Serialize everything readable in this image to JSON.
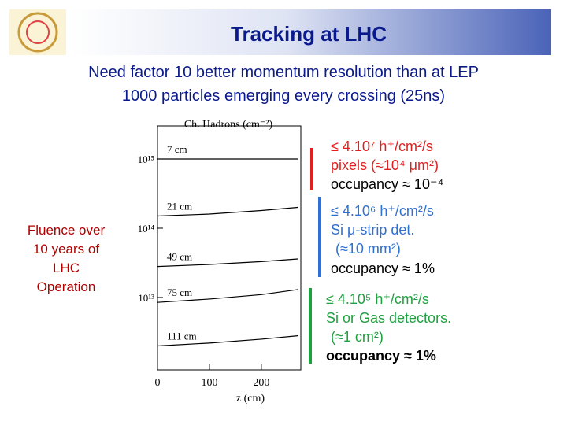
{
  "header": {
    "title": "Tracking at LHC"
  },
  "intro": [
    "Need factor 10 better momentum resolution than at LEP",
    "1000 particles emerging every crossing (25ns)"
  ],
  "side_note": [
    "Fluence over",
    "10 years of",
    "LHC",
    "Operation"
  ],
  "notes": [
    {
      "lines": [
        "≤ 4.10⁷ h⁺/cm²/s",
        "pixels (≈10⁴ μm²)",
        "occupancy ≈ 10⁻⁴"
      ]
    },
    {
      "lines": [
        "≤ 4.10⁶ h⁺/cm²/s",
        "Si μ-strip det.",
        "(≈10 mm²)",
        "occupancy ≈ 1%"
      ]
    },
    {
      "lines": [
        "≤ 4.10⁵ h⁺/cm²/s",
        "Si or Gas detectors.",
        "(≈1 cm²)",
        "occupancy ≈ 1%"
      ]
    }
  ],
  "chart_data": {
    "type": "line",
    "y_label": "Ch. Hadrons (cm⁻²)",
    "x_label": "z (cm)",
    "x": [
      0,
      100,
      200,
      270
    ],
    "series": [
      {
        "name": "7 cm",
        "color": "#000000",
        "values": [
          1000000000000000.0,
          1000000000000000.0,
          1000000000000000.0,
          1000000000000000.0
        ]
      },
      {
        "name": "21 cm",
        "color": "#000000",
        "values": [
          150000000000000.0,
          160000000000000.0,
          180000000000000.0,
          200000000000000.0
        ]
      },
      {
        "name": "49 cm",
        "color": "#000000",
        "values": [
          28000000000000.0,
          30000000000000.0,
          33000000000000.0,
          36000000000000.0
        ]
      },
      {
        "name": "75 cm",
        "color": "#000000",
        "values": [
          8500000000000.0,
          9500000000000.0,
          11000000000000.0,
          13000000000000.0
        ]
      },
      {
        "name": "111 cm",
        "color": "#000000",
        "values": [
          2000000000000.0,
          2200000000000.0,
          2500000000000.0,
          2800000000000.0
        ]
      }
    ],
    "xlim": [
      0,
      276
    ],
    "xticks": [
      0,
      100,
      200
    ],
    "ylim": [
      900000000000.0,
      3000000000000000.0
    ],
    "log_y": true,
    "yticks": [
      {
        "value": 10000000000000.0,
        "label": "10¹³"
      },
      {
        "value": 100000000000000.0,
        "label": "10¹⁴"
      },
      {
        "value": 1000000000000000.0,
        "label": "10¹⁵"
      }
    ]
  }
}
